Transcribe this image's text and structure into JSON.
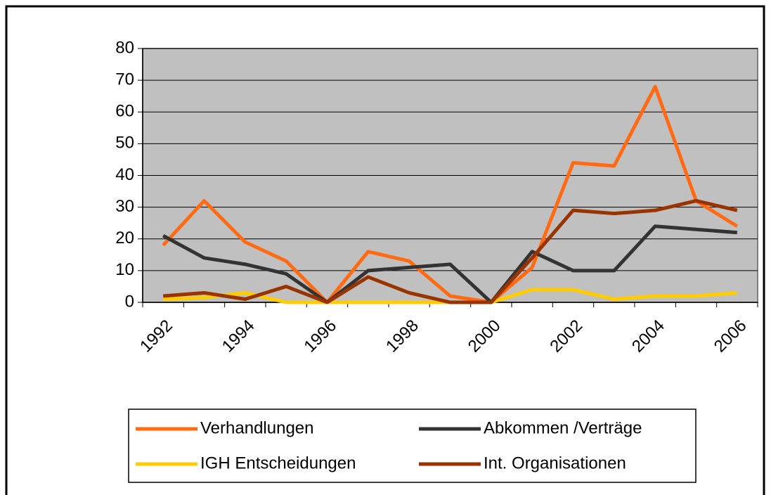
{
  "chart_data": {
    "type": "line",
    "categories": [
      "1992",
      null,
      "1994",
      null,
      "1996",
      null,
      "1998",
      null,
      "2000",
      null,
      "2002",
      null,
      "2004",
      null,
      "2006"
    ],
    "series": [
      {
        "name": "Verhandlungen",
        "color": "#ff6a13",
        "values": [
          18,
          32,
          19,
          13,
          0,
          16,
          13,
          2,
          0,
          11,
          44,
          43,
          68,
          32,
          24
        ]
      },
      {
        "name": "Abkommen /Verträge",
        "color": "#333333",
        "values": [
          21,
          14,
          12,
          9,
          0,
          10,
          11,
          12,
          0,
          16,
          10,
          10,
          24,
          23,
          22
        ]
      },
      {
        "name": "IGH Entscheidungen",
        "color": "#ffcc00",
        "values": [
          1,
          1.5,
          3,
          0,
          0,
          0,
          0,
          0,
          0,
          4,
          4,
          1,
          2,
          2,
          3
        ]
      },
      {
        "name": "Int. Organisationen",
        "color": "#993300",
        "values": [
          2,
          3,
          1,
          5,
          0,
          8,
          3,
          0,
          0,
          14,
          29,
          28,
          29,
          32,
          29
        ]
      }
    ],
    "ylim": [
      0,
      80
    ],
    "yticks": [
      0,
      10,
      20,
      30,
      40,
      50,
      60,
      70,
      80
    ],
    "grid": true,
    "plot_background": "#c0c0c0"
  }
}
